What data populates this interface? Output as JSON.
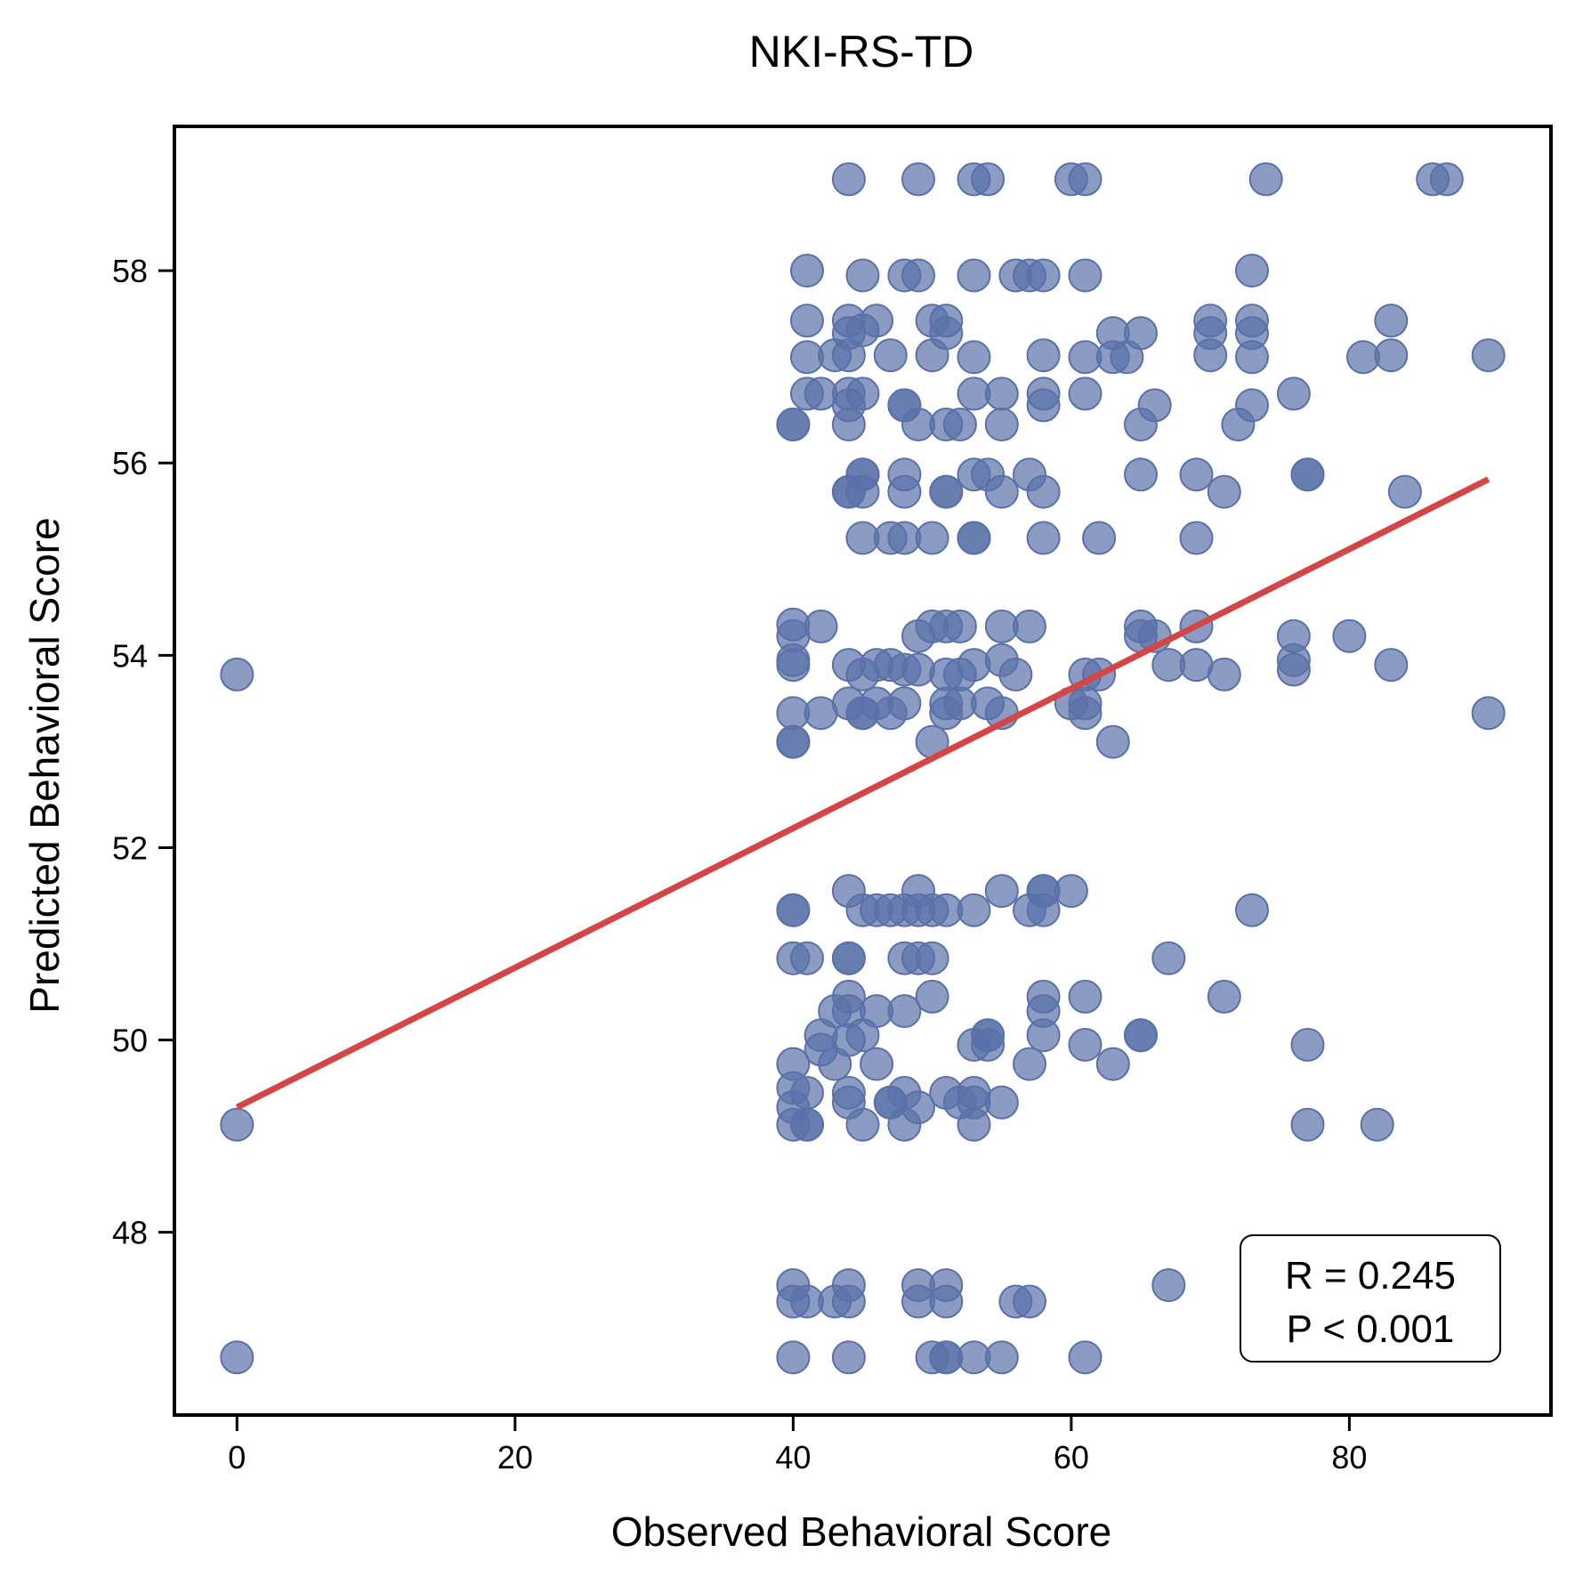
{
  "chart_data": {
    "type": "scatter",
    "title": "NKI-RS-TD",
    "xlabel": "Observed Behavioral Score",
    "ylabel": "Predicted Behavioral Score",
    "xlim": [
      -4.5,
      94.5
    ],
    "ylim": [
      46.1,
      59.5
    ],
    "xticks": [
      0,
      20,
      40,
      60,
      80
    ],
    "yticks": [
      48,
      50,
      52,
      54,
      56,
      58
    ],
    "grid": false,
    "colors": {
      "points": "#5a70a8",
      "fit_line": "#d44646",
      "frame": "#000000"
    },
    "fit_line": {
      "x": [
        0,
        90
      ],
      "y": [
        49.3,
        55.83
      ]
    },
    "stats": {
      "line1": "R = 0.245",
      "line2": "P < 0.001",
      "placement": "bottom-right"
    },
    "points": [
      [
        0,
        53.8
      ],
      [
        0,
        49.12
      ],
      [
        0,
        46.7
      ],
      [
        40,
        47.45
      ],
      [
        40,
        47.28
      ],
      [
        40,
        46.7
      ],
      [
        40,
        49.75
      ],
      [
        40,
        49.5
      ],
      [
        40,
        49.3
      ],
      [
        40,
        49.12
      ],
      [
        40,
        50.85
      ],
      [
        40,
        51.35
      ],
      [
        40,
        51.35
      ],
      [
        40,
        53.1
      ],
      [
        40,
        53.1
      ],
      [
        40,
        53.4
      ],
      [
        40,
        53.9
      ],
      [
        40,
        53.95
      ],
      [
        40,
        54.2
      ],
      [
        40,
        54.32
      ],
      [
        40,
        56.4
      ],
      [
        40,
        56.4
      ],
      [
        41,
        47.28
      ],
      [
        41,
        49.12
      ],
      [
        41,
        49.12
      ],
      [
        41,
        49.45
      ],
      [
        41,
        50.85
      ],
      [
        41,
        56.72
      ],
      [
        41,
        57.1
      ],
      [
        41,
        57.48
      ],
      [
        41,
        58.0
      ],
      [
        42,
        53.4
      ],
      [
        42,
        54.3
      ],
      [
        42,
        56.72
      ],
      [
        42,
        49.9
      ],
      [
        42,
        50.05
      ],
      [
        43,
        47.28
      ],
      [
        43,
        49.75
      ],
      [
        43,
        50.3
      ],
      [
        43,
        57.12
      ],
      [
        44,
        46.7
      ],
      [
        44,
        47.28
      ],
      [
        44,
        47.45
      ],
      [
        44,
        49.35
      ],
      [
        44,
        49.45
      ],
      [
        44,
        50.0
      ],
      [
        44,
        50.3
      ],
      [
        44,
        50.45
      ],
      [
        44,
        50.85
      ],
      [
        44,
        50.85
      ],
      [
        44,
        51.55
      ],
      [
        44,
        53.5
      ],
      [
        44,
        53.9
      ],
      [
        44,
        55.7
      ],
      [
        44,
        55.7
      ],
      [
        44,
        56.4
      ],
      [
        44,
        56.6
      ],
      [
        44,
        56.72
      ],
      [
        44,
        57.12
      ],
      [
        44,
        57.35
      ],
      [
        44,
        57.48
      ],
      [
        44,
        58.95
      ],
      [
        45,
        49.12
      ],
      [
        45,
        50.05
      ],
      [
        45,
        51.35
      ],
      [
        45,
        53.4
      ],
      [
        45,
        53.4
      ],
      [
        45,
        53.8
      ],
      [
        45,
        55.22
      ],
      [
        45,
        55.7
      ],
      [
        45,
        55.88
      ],
      [
        45,
        55.88
      ],
      [
        45,
        56.72
      ],
      [
        45,
        57.38
      ],
      [
        45,
        57.95
      ],
      [
        46,
        49.75
      ],
      [
        46,
        50.3
      ],
      [
        46,
        51.35
      ],
      [
        46,
        53.5
      ],
      [
        46,
        53.9
      ],
      [
        46,
        57.48
      ],
      [
        47,
        49.35
      ],
      [
        47,
        49.35
      ],
      [
        47,
        51.35
      ],
      [
        47,
        53.4
      ],
      [
        47,
        53.9
      ],
      [
        47,
        55.22
      ],
      [
        47,
        57.12
      ],
      [
        48,
        49.12
      ],
      [
        48,
        49.45
      ],
      [
        48,
        50.3
      ],
      [
        48,
        50.85
      ],
      [
        48,
        51.35
      ],
      [
        48,
        53.5
      ],
      [
        48,
        53.85
      ],
      [
        48,
        55.22
      ],
      [
        48,
        55.7
      ],
      [
        48,
        55.88
      ],
      [
        48,
        56.6
      ],
      [
        48,
        56.6
      ],
      [
        48,
        57.95
      ],
      [
        49,
        47.28
      ],
      [
        49,
        47.45
      ],
      [
        49,
        49.3
      ],
      [
        49,
        50.85
      ],
      [
        49,
        51.35
      ],
      [
        49,
        51.55
      ],
      [
        49,
        53.85
      ],
      [
        49,
        54.2
      ],
      [
        49,
        56.4
      ],
      [
        49,
        57.95
      ],
      [
        49,
        58.95
      ],
      [
        50,
        46.7
      ],
      [
        50,
        50.45
      ],
      [
        50,
        50.85
      ],
      [
        50,
        51.35
      ],
      [
        50,
        53.1
      ],
      [
        50,
        54.3
      ],
      [
        50,
        55.22
      ],
      [
        50,
        57.12
      ],
      [
        50,
        57.48
      ],
      [
        51,
        46.7
      ],
      [
        51,
        46.7
      ],
      [
        51,
        47.28
      ],
      [
        51,
        47.45
      ],
      [
        51,
        49.45
      ],
      [
        51,
        51.35
      ],
      [
        51,
        53.4
      ],
      [
        51,
        53.5
      ],
      [
        51,
        53.8
      ],
      [
        51,
        54.3
      ],
      [
        51,
        55.7
      ],
      [
        51,
        55.7
      ],
      [
        51,
        56.4
      ],
      [
        51,
        57.35
      ],
      [
        51,
        57.48
      ],
      [
        52,
        49.35
      ],
      [
        52,
        53.5
      ],
      [
        52,
        53.8
      ],
      [
        52,
        54.3
      ],
      [
        52,
        56.4
      ],
      [
        53,
        46.7
      ],
      [
        53,
        49.12
      ],
      [
        53,
        49.35
      ],
      [
        53,
        49.45
      ],
      [
        53,
        49.95
      ],
      [
        53,
        51.35
      ],
      [
        53,
        53.9
      ],
      [
        53,
        55.22
      ],
      [
        53,
        55.22
      ],
      [
        53,
        55.88
      ],
      [
        53,
        56.72
      ],
      [
        53,
        57.1
      ],
      [
        53,
        57.95
      ],
      [
        53,
        58.95
      ],
      [
        54,
        49.95
      ],
      [
        54,
        50.05
      ],
      [
        54,
        50.05
      ],
      [
        54,
        53.5
      ],
      [
        54,
        55.88
      ],
      [
        54,
        58.95
      ],
      [
        55,
        46.7
      ],
      [
        55,
        49.35
      ],
      [
        55,
        51.55
      ],
      [
        55,
        53.4
      ],
      [
        55,
        53.95
      ],
      [
        55,
        54.3
      ],
      [
        55,
        55.7
      ],
      [
        55,
        56.4
      ],
      [
        55,
        56.72
      ],
      [
        56,
        47.28
      ],
      [
        56,
        53.8
      ],
      [
        56,
        57.95
      ],
      [
        57,
        47.28
      ],
      [
        57,
        49.75
      ],
      [
        57,
        51.35
      ],
      [
        57,
        54.3
      ],
      [
        57,
        55.88
      ],
      [
        57,
        57.95
      ],
      [
        58,
        50.05
      ],
      [
        58,
        50.3
      ],
      [
        58,
        50.45
      ],
      [
        58,
        51.35
      ],
      [
        58,
        51.55
      ],
      [
        58,
        51.55
      ],
      [
        58,
        55.22
      ],
      [
        58,
        55.7
      ],
      [
        58,
        56.6
      ],
      [
        58,
        56.72
      ],
      [
        58,
        57.12
      ],
      [
        58,
        57.95
      ],
      [
        60,
        51.55
      ],
      [
        60,
        53.5
      ],
      [
        60,
        58.95
      ],
      [
        61,
        46.7
      ],
      [
        61,
        49.95
      ],
      [
        61,
        50.45
      ],
      [
        61,
        53.4
      ],
      [
        61,
        53.5
      ],
      [
        61,
        53.8
      ],
      [
        61,
        56.72
      ],
      [
        61,
        57.1
      ],
      [
        61,
        57.95
      ],
      [
        61,
        58.95
      ],
      [
        62,
        53.8
      ],
      [
        62,
        55.22
      ],
      [
        63,
        49.75
      ],
      [
        63,
        53.1
      ],
      [
        63,
        57.1
      ],
      [
        63,
        57.35
      ],
      [
        64,
        57.1
      ],
      [
        65,
        50.05
      ],
      [
        65,
        50.05
      ],
      [
        65,
        54.2
      ],
      [
        65,
        54.3
      ],
      [
        65,
        55.88
      ],
      [
        65,
        56.4
      ],
      [
        65,
        57.35
      ],
      [
        66,
        54.2
      ],
      [
        66,
        56.6
      ],
      [
        67,
        47.45
      ],
      [
        67,
        50.85
      ],
      [
        67,
        53.9
      ],
      [
        69,
        53.9
      ],
      [
        69,
        54.3
      ],
      [
        69,
        55.22
      ],
      [
        69,
        55.88
      ],
      [
        70,
        57.12
      ],
      [
        70,
        57.35
      ],
      [
        70,
        57.48
      ],
      [
        71,
        50.45
      ],
      [
        71,
        53.8
      ],
      [
        71,
        55.7
      ],
      [
        72,
        56.4
      ],
      [
        73,
        51.35
      ],
      [
        73,
        56.6
      ],
      [
        73,
        57.1
      ],
      [
        73,
        57.35
      ],
      [
        73,
        57.48
      ],
      [
        73,
        58.0
      ],
      [
        74,
        58.95
      ],
      [
        76,
        53.85
      ],
      [
        76,
        53.95
      ],
      [
        76,
        54.2
      ],
      [
        76,
        56.72
      ],
      [
        77,
        49.12
      ],
      [
        77,
        49.95
      ],
      [
        77,
        55.88
      ],
      [
        77,
        55.88
      ],
      [
        80,
        54.2
      ],
      [
        81,
        57.1
      ],
      [
        82,
        49.12
      ],
      [
        83,
        53.9
      ],
      [
        83,
        57.12
      ],
      [
        83,
        57.48
      ],
      [
        84,
        55.7
      ],
      [
        86,
        58.95
      ],
      [
        87,
        58.95
      ],
      [
        90,
        53.4
      ],
      [
        90,
        57.12
      ]
    ]
  }
}
